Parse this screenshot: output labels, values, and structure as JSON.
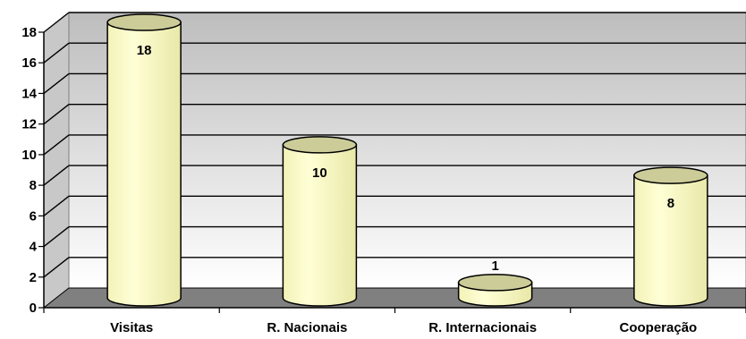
{
  "chart_data": {
    "type": "bar",
    "style": "3d-cylinder",
    "categories": [
      "Visitas",
      "R. Nacionais",
      "R. Internacionais",
      "Cooperação"
    ],
    "values": [
      18,
      10,
      1,
      8
    ],
    "data_labels": [
      "18",
      "10",
      "1",
      "8"
    ],
    "ylim": [
      0,
      18
    ],
    "yticks": [
      "0",
      "2",
      "4",
      "6",
      "8",
      "10",
      "12",
      "14",
      "16",
      "18"
    ],
    "grid": true,
    "legend": "none",
    "title": "",
    "xlabel": "",
    "ylabel": "",
    "colors": {
      "bar_face": "#ffffcc",
      "bar_top": "#cccc99",
      "bar_edge": "#000000",
      "wall_top": "#c0c0c0",
      "wall_bottom": "#ffffff",
      "floor": "#808080",
      "gridline": "#000000"
    }
  }
}
